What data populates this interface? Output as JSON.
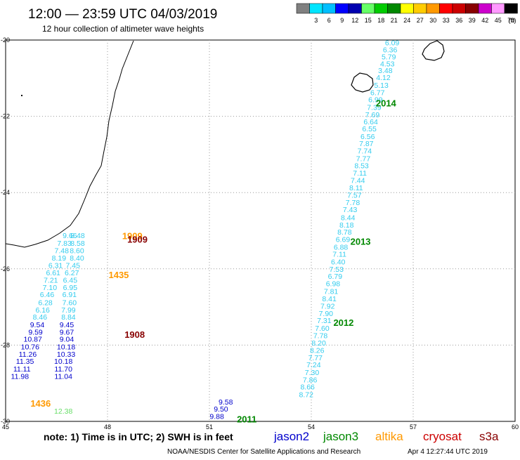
{
  "header": {
    "title": "12:00 — 23:59 UTC 04/03/2019",
    "subtitle": "12 hour collection of altimeter wave heights"
  },
  "colorbar": {
    "unit_label": "(ft)",
    "bins": [
      {
        "label": "",
        "color": "#808080"
      },
      {
        "label": "3",
        "color": "#00e5ff"
      },
      {
        "label": "6",
        "color": "#00bfff"
      },
      {
        "label": "9",
        "color": "#0000ff"
      },
      {
        "label": "12",
        "color": "#0000b0"
      },
      {
        "label": "15",
        "color": "#66ff66"
      },
      {
        "label": "18",
        "color": "#00cc00"
      },
      {
        "label": "21",
        "color": "#008800"
      },
      {
        "label": "24",
        "color": "#ffff00"
      },
      {
        "label": "27",
        "color": "#ffcc00"
      },
      {
        "label": "30",
        "color": "#ff9900"
      },
      {
        "label": "33",
        "color": "#ff0000"
      },
      {
        "label": "36",
        "color": "#cc0000"
      },
      {
        "label": "39",
        "color": "#880000"
      },
      {
        "label": "42",
        "color": "#cc00cc"
      },
      {
        "label": "45",
        "color": "#ff99ff"
      },
      {
        "label": "70",
        "color": "#000000"
      }
    ]
  },
  "axes": {
    "lon_labels": [
      "45",
      "48",
      "51",
      "54",
      "57",
      "60"
    ],
    "lat_labels": [
      "-20",
      "-22",
      "-24",
      "-26",
      "-28",
      "-30"
    ]
  },
  "footer": {
    "note": "note:  1) Time is in UTC;  2) SWH is in feet",
    "credit": "NOAA/NESDIS Center for Satellite Applications and Research",
    "generated": "Apr  4 12:27:44 UTC 2019"
  },
  "legend": [
    {
      "label": "jason2",
      "color": "#0000cc"
    },
    {
      "label": "jason3",
      "color": "#008800"
    },
    {
      "label": "altika",
      "color": "#ff9900"
    },
    {
      "label": "cryosat",
      "color": "#cc0000"
    },
    {
      "label": "s3a",
      "color": "#880000"
    }
  ],
  "map_data": {
    "extent": {
      "lon": [
        45,
        60
      ],
      "lat": [
        -30,
        -20
      ]
    },
    "time_labels": [
      {
        "text": "2014",
        "lon": 56.2,
        "lat": -21.65,
        "color": "#008800"
      },
      {
        "text": "2013",
        "lon": 55.45,
        "lat": -25.28,
        "color": "#008800"
      },
      {
        "text": "2012",
        "lon": 54.95,
        "lat": -27.4,
        "color": "#008800"
      },
      {
        "text": "2011",
        "lon": 52.1,
        "lat": -29.94,
        "color": "#008800"
      },
      {
        "text": "1909",
        "lon": 48.73,
        "lat": -25.13,
        "color": "#ff9900"
      },
      {
        "text": "1909",
        "lon": 48.88,
        "lat": -25.22,
        "color": "#880000"
      },
      {
        "text": "1435",
        "lon": 48.33,
        "lat": -26.15,
        "color": "#ff9900"
      },
      {
        "text": "1908",
        "lon": 48.8,
        "lat": -27.72,
        "color": "#880000"
      },
      {
        "text": "1436",
        "lon": 46.03,
        "lat": -29.52,
        "color": "#ff9900"
      }
    ],
    "tracks": [
      {
        "name": "jason3-east",
        "color": "#33ccee",
        "points": [
          {
            "lon": 56.38,
            "lat": -20.06,
            "swh": "6.09"
          },
          {
            "lon": 56.32,
            "lat": -20.25,
            "swh": "6.36"
          },
          {
            "lon": 56.28,
            "lat": -20.43,
            "swh": "5.79"
          },
          {
            "lon": 56.24,
            "lat": -20.62,
            "swh": "4.53"
          },
          {
            "lon": 56.18,
            "lat": -20.79,
            "swh": "3.48"
          },
          {
            "lon": 56.12,
            "lat": -20.98,
            "swh": "4.12"
          },
          {
            "lon": 56.06,
            "lat": -21.18,
            "swh": "5.13"
          },
          {
            "lon": 55.95,
            "lat": -21.37,
            "swh": "6.77"
          },
          {
            "lon": 55.89,
            "lat": -21.56,
            "swh": "6.99"
          },
          {
            "lon": 55.85,
            "lat": -21.76,
            "swh": "7.39"
          },
          {
            "lon": 55.8,
            "lat": -21.95,
            "swh": "7.69"
          },
          {
            "lon": 55.75,
            "lat": -22.14,
            "swh": "6.64"
          },
          {
            "lon": 55.71,
            "lat": -22.32,
            "swh": "6.55"
          },
          {
            "lon": 55.66,
            "lat": -22.52,
            "swh": "6.56"
          },
          {
            "lon": 55.62,
            "lat": -22.71,
            "swh": "7.87"
          },
          {
            "lon": 55.57,
            "lat": -22.9,
            "swh": "7.74"
          },
          {
            "lon": 55.53,
            "lat": -23.1,
            "swh": "7.77"
          },
          {
            "lon": 55.48,
            "lat": -23.29,
            "swh": "8.53"
          },
          {
            "lon": 55.43,
            "lat": -23.48,
            "swh": "7.11"
          },
          {
            "lon": 55.37,
            "lat": -23.67,
            "swh": "7.44"
          },
          {
            "lon": 55.32,
            "lat": -23.87,
            "swh": "8.11"
          },
          {
            "lon": 55.27,
            "lat": -24.06,
            "swh": "7.57"
          },
          {
            "lon": 55.22,
            "lat": -24.25,
            "swh": "7.78"
          },
          {
            "lon": 55.14,
            "lat": -24.44,
            "swh": "7.43"
          },
          {
            "lon": 55.08,
            "lat": -24.65,
            "swh": "8.44"
          },
          {
            "lon": 55.04,
            "lat": -24.84,
            "swh": "8.18"
          },
          {
            "lon": 54.98,
            "lat": -25.03,
            "swh": "8.78"
          },
          {
            "lon": 54.93,
            "lat": -25.22,
            "swh": "6.69"
          },
          {
            "lon": 54.87,
            "lat": -25.42,
            "swh": "6.88"
          },
          {
            "lon": 54.83,
            "lat": -25.61,
            "swh": "7.11"
          },
          {
            "lon": 54.79,
            "lat": -25.81,
            "swh": "6.40"
          },
          {
            "lon": 54.74,
            "lat": -26.0,
            "swh": "7.53"
          },
          {
            "lon": 54.7,
            "lat": -26.19,
            "swh": "6.79"
          },
          {
            "lon": 54.64,
            "lat": -26.38,
            "swh": "6.98"
          },
          {
            "lon": 54.58,
            "lat": -26.58,
            "swh": "7.81"
          },
          {
            "lon": 54.53,
            "lat": -26.78,
            "swh": "8.41"
          },
          {
            "lon": 54.48,
            "lat": -26.97,
            "swh": "7.92"
          },
          {
            "lon": 54.43,
            "lat": -27.16,
            "swh": "7.90"
          },
          {
            "lon": 54.38,
            "lat": -27.35,
            "swh": "7.31"
          },
          {
            "lon": 54.32,
            "lat": -27.55,
            "swh": "7.60"
          },
          {
            "lon": 54.27,
            "lat": -27.74,
            "swh": "7.78"
          },
          {
            "lon": 54.22,
            "lat": -27.94,
            "swh": "8.20"
          },
          {
            "lon": 54.17,
            "lat": -28.13,
            "swh": "8.26"
          },
          {
            "lon": 54.12,
            "lat": -28.32,
            "swh": "7.77"
          },
          {
            "lon": 54.07,
            "lat": -28.51,
            "swh": "7.24"
          },
          {
            "lon": 54.02,
            "lat": -28.71,
            "swh": "7.30"
          },
          {
            "lon": 53.96,
            "lat": -28.9,
            "swh": "7.86"
          },
          {
            "lon": 53.89,
            "lat": -29.09,
            "swh": "8.66"
          },
          {
            "lon": 53.85,
            "lat": -29.29,
            "swh": "8.72"
          }
        ]
      },
      {
        "name": "jason2-east",
        "color": "#0000cc",
        "points": [
          {
            "lon": 51.48,
            "lat": -29.48,
            "swh": "9.58"
          },
          {
            "lon": 51.34,
            "lat": -29.67,
            "swh": "9.50"
          },
          {
            "lon": 51.22,
            "lat": -29.86,
            "swh": "9.88"
          }
        ]
      },
      {
        "name": "jason3-west-a",
        "color": "#33ccee",
        "points": [
          {
            "lon": 46.89,
            "lat": -25.12,
            "swh": "9.66"
          },
          {
            "lon": 47.12,
            "lat": -25.12,
            "swh": "8.48"
          },
          {
            "lon": 46.73,
            "lat": -25.32,
            "swh": "7.83"
          },
          {
            "lon": 47.12,
            "lat": -25.32,
            "swh": "8.58"
          },
          {
            "lon": 46.65,
            "lat": -25.52,
            "swh": "7.48"
          },
          {
            "lon": 47.1,
            "lat": -25.52,
            "swh": "8.60"
          },
          {
            "lon": 46.57,
            "lat": -25.71,
            "swh": "8.19"
          },
          {
            "lon": 47.1,
            "lat": -25.71,
            "swh": "8.40"
          },
          {
            "lon": 46.47,
            "lat": -25.9,
            "swh": "6.31"
          },
          {
            "lon": 46.98,
            "lat": -25.9,
            "swh": "7.45"
          },
          {
            "lon": 46.4,
            "lat": -26.1,
            "swh": "6.61"
          },
          {
            "lon": 46.95,
            "lat": -26.1,
            "swh": "6.27"
          },
          {
            "lon": 46.33,
            "lat": -26.29,
            "swh": "7.21"
          },
          {
            "lon": 46.9,
            "lat": -26.29,
            "swh": "6.45"
          },
          {
            "lon": 46.3,
            "lat": -26.48,
            "swh": "7.10"
          },
          {
            "lon": 46.9,
            "lat": -26.48,
            "swh": "6.95"
          },
          {
            "lon": 46.22,
            "lat": -26.67,
            "swh": "6.46"
          },
          {
            "lon": 46.88,
            "lat": -26.67,
            "swh": "6.91"
          },
          {
            "lon": 46.17,
            "lat": -26.88,
            "swh": "6.28"
          },
          {
            "lon": 46.88,
            "lat": -26.88,
            "swh": "7.60"
          },
          {
            "lon": 46.09,
            "lat": -27.07,
            "swh": "6.16"
          },
          {
            "lon": 46.85,
            "lat": -27.07,
            "swh": "7.99"
          },
          {
            "lon": 46.01,
            "lat": -27.26,
            "swh": "8.46"
          },
          {
            "lon": 46.85,
            "lat": -27.26,
            "swh": "8.84"
          }
        ]
      },
      {
        "name": "jason2-west",
        "color": "#0000cc",
        "points": [
          {
            "lon": 45.93,
            "lat": -27.46,
            "swh": "9.54"
          },
          {
            "lon": 46.8,
            "lat": -27.46,
            "swh": "9.45"
          },
          {
            "lon": 45.88,
            "lat": -27.65,
            "swh": "9.59"
          },
          {
            "lon": 46.8,
            "lat": -27.65,
            "swh": "9.67"
          },
          {
            "lon": 45.8,
            "lat": -27.84,
            "swh": "10.87"
          },
          {
            "lon": 46.8,
            "lat": -27.84,
            "swh": "9.04"
          },
          {
            "lon": 45.72,
            "lat": -28.04,
            "swh": "10.76"
          },
          {
            "lon": 46.78,
            "lat": -28.04,
            "swh": "10.18"
          },
          {
            "lon": 45.65,
            "lat": -28.23,
            "swh": "11.26"
          },
          {
            "lon": 46.78,
            "lat": -28.23,
            "swh": "10.33"
          },
          {
            "lon": 45.57,
            "lat": -28.42,
            "swh": "11.35"
          },
          {
            "lon": 46.7,
            "lat": -28.42,
            "swh": "10.18"
          },
          {
            "lon": 45.48,
            "lat": -28.62,
            "swh": "11.11"
          },
          {
            "lon": 46.7,
            "lat": -28.62,
            "swh": "11.70"
          },
          {
            "lon": 45.42,
            "lat": -28.81,
            "swh": "11.98"
          },
          {
            "lon": 46.7,
            "lat": -28.81,
            "swh": "11.04"
          }
        ]
      },
      {
        "name": "altika-west",
        "color": "#66dd66",
        "points": [
          {
            "lon": 46.7,
            "lat": -29.72,
            "swh": "12.38"
          }
        ]
      }
    ]
  }
}
